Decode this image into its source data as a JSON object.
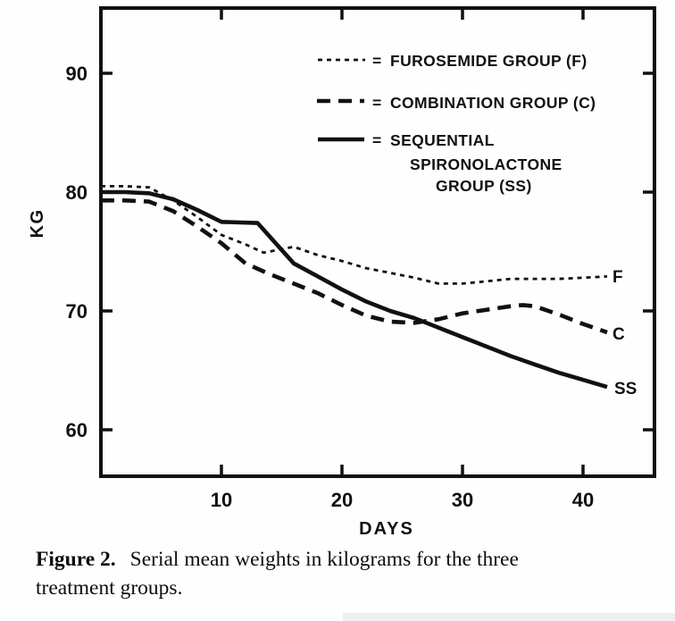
{
  "caption": {
    "label": "Figure 2.",
    "line1": "Serial mean weights in kilograms for the three",
    "line2": "treatment groups."
  },
  "chart_data": {
    "type": "line",
    "title": "Figure 2. Serial mean weights in kilograms for the three treatment groups.",
    "xlabel": "DAYS",
    "ylabel": "KG",
    "xlim": [
      0,
      46
    ],
    "ylim": [
      56,
      95.5
    ],
    "x_ticks": [
      10,
      20,
      30,
      40
    ],
    "y_ticks": [
      90,
      80,
      70,
      60
    ],
    "grid": false,
    "legend_position": "upper right inside plot",
    "legend_equals_sign": "=",
    "series": [
      {
        "name": "Furosemide Group",
        "end_label": "F",
        "legend_lines": [
          "FUROSEMIDE GROUP (F)"
        ],
        "line_style": "fine-dashed",
        "color": "#111111",
        "x": [
          0,
          2,
          4,
          6,
          8,
          10,
          12,
          13.5,
          16,
          18,
          20,
          22,
          24,
          26,
          28,
          30,
          32,
          34,
          36,
          38,
          40,
          42
        ],
        "y": [
          80.5,
          80.5,
          80.4,
          79.3,
          77.9,
          76.4,
          75.6,
          74.9,
          75.4,
          74.7,
          74.2,
          73.6,
          73.2,
          72.8,
          72.3,
          72.3,
          72.5,
          72.7,
          72.7,
          72.7,
          72.8,
          72.9
        ]
      },
      {
        "name": "Combination Group",
        "end_label": "C",
        "legend_lines": [
          "COMBINATION GROUP (C)"
        ],
        "line_style": "long-dashed",
        "color": "#111111",
        "x": [
          0,
          2,
          4,
          6,
          8,
          10,
          12,
          14,
          16,
          18,
          20,
          22,
          24,
          26,
          28,
          30,
          32,
          34,
          35,
          36,
          38,
          40,
          42
        ],
        "y": [
          79.3,
          79.3,
          79.2,
          78.4,
          77.1,
          75.7,
          74.0,
          73.1,
          72.3,
          71.5,
          70.5,
          69.6,
          69.1,
          69.0,
          69.3,
          69.8,
          70.1,
          70.4,
          70.5,
          70.4,
          69.7,
          68.9,
          68.2
        ]
      },
      {
        "name": "Sequential Spironolactone Group",
        "end_label": "SS",
        "legend_lines": [
          "SEQUENTIAL",
          "SPIRONOLACTONE",
          "GROUP (SS)"
        ],
        "line_style": "solid",
        "color": "#111111",
        "x": [
          0,
          2,
          4,
          6,
          8,
          10,
          13,
          16,
          18,
          20,
          22,
          24,
          26,
          28,
          30,
          32,
          34,
          36,
          38,
          40,
          42
        ],
        "y": [
          80.0,
          80.0,
          79.9,
          79.4,
          78.5,
          77.5,
          77.4,
          74.0,
          72.9,
          71.8,
          70.8,
          70.0,
          69.4,
          68.6,
          67.8,
          67.0,
          66.2,
          65.5,
          64.8,
          64.2,
          63.6
        ]
      }
    ]
  }
}
